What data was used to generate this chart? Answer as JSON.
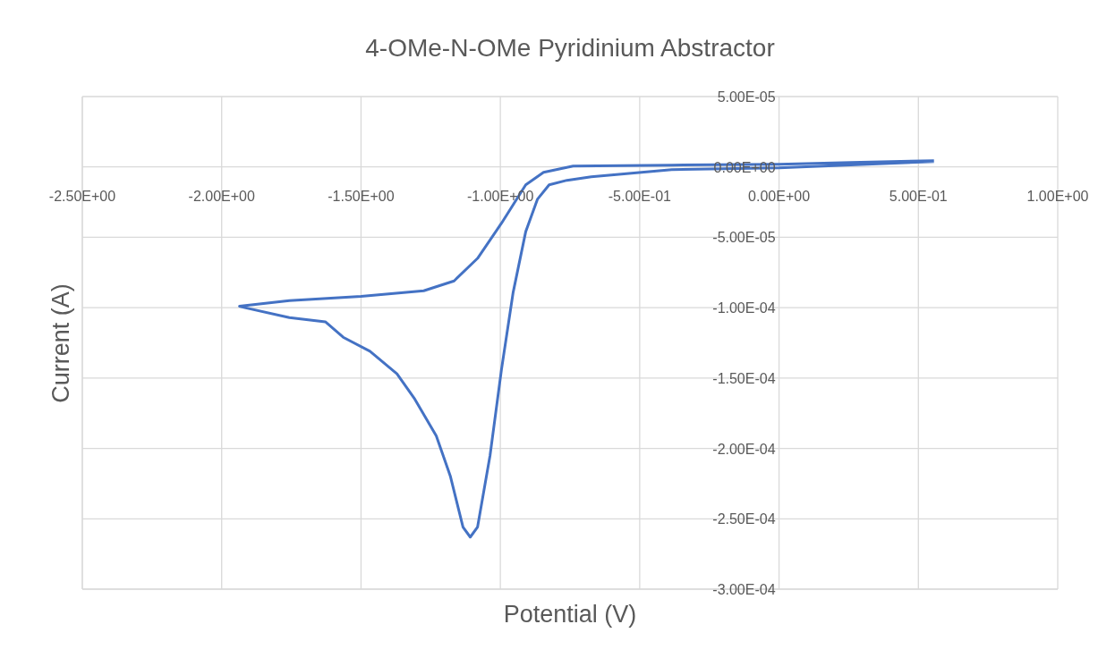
{
  "chart_data": {
    "type": "line",
    "title": "4-OMe-N-OMe Pyridinium Abstractor",
    "xlabel": "Potential (V)",
    "ylabel": "Current (A)",
    "series": [
      {
        "color": "#4472c4",
        "x": [
          0.556,
          0.257,
          0,
          -0.385,
          -0.739,
          -0.845,
          -0.909,
          -0.996,
          -1.082,
          -1.166,
          -1.275,
          -1.5,
          -1.757,
          -1.936,
          -1.917,
          -1.757,
          -1.628,
          -1.564,
          -1.468,
          -1.371,
          -1.307,
          -1.23,
          -1.179,
          -1.134,
          -1.108,
          -1.082,
          -1.037,
          -0.996,
          -0.954,
          -0.909,
          -0.867,
          -0.825,
          -0.761,
          -0.674,
          -0.385,
          0,
          0.556
        ],
        "values": [
          4.4e-06,
          3.2e-06,
          1.9e-06,
          1.3e-06,
          6e-07,
          -3.8e-06,
          -1.27e-05,
          -4e-05,
          -6.5e-05,
          -8.1e-05,
          -8.8e-05,
          -9.2e-05,
          -9.5e-05,
          -9.9e-05,
          -0.0001,
          -0.000107,
          -0.00011,
          -0.000121,
          -0.000131,
          -0.000147,
          -0.000165,
          -0.000191,
          -0.00022,
          -0.000256,
          -0.000263,
          -0.000256,
          -0.000205,
          -0.000144,
          -8.9e-05,
          -4.6e-05,
          -2.3e-05,
          -1.27e-05,
          -9.5e-06,
          -7e-06,
          -1.9e-06,
          -6e-07,
          3.8e-06
        ]
      }
    ],
    "xlim": [
      -2.5,
      1.0
    ],
    "xticks": [
      {
        "value": -2.5,
        "label": "-2.50E+00"
      },
      {
        "value": -2.0,
        "label": "-2.00E+00"
      },
      {
        "value": -1.5,
        "label": "-1.50E+00"
      },
      {
        "value": -1.0,
        "label": "-1.00E+00"
      },
      {
        "value": -0.5,
        "label": "-5.00E-01"
      },
      {
        "value": 0,
        "label": "0.00E+00"
      },
      {
        "value": 0.5,
        "label": "5.00E-01"
      },
      {
        "value": 1.0,
        "label": "1.00E+00"
      }
    ],
    "ylim": [
      -0.0003,
      5e-05
    ],
    "yticks": [
      {
        "value": -0.0003,
        "label": "-3.00E-04"
      },
      {
        "value": -0.00025,
        "label": "-2.50E-04"
      },
      {
        "value": -0.0002,
        "label": "-2.00E-04"
      },
      {
        "value": -0.00015,
        "label": "-1.50E-04"
      },
      {
        "value": -0.0001,
        "label": "-1.00E-04"
      },
      {
        "value": -5e-05,
        "label": "-5.00E-05"
      },
      {
        "value": 0,
        "label": "0.00E+00"
      },
      {
        "value": 5e-05,
        "label": "5.00E-05"
      }
    ],
    "grid": true,
    "marker": "none",
    "line_style": "solid"
  }
}
